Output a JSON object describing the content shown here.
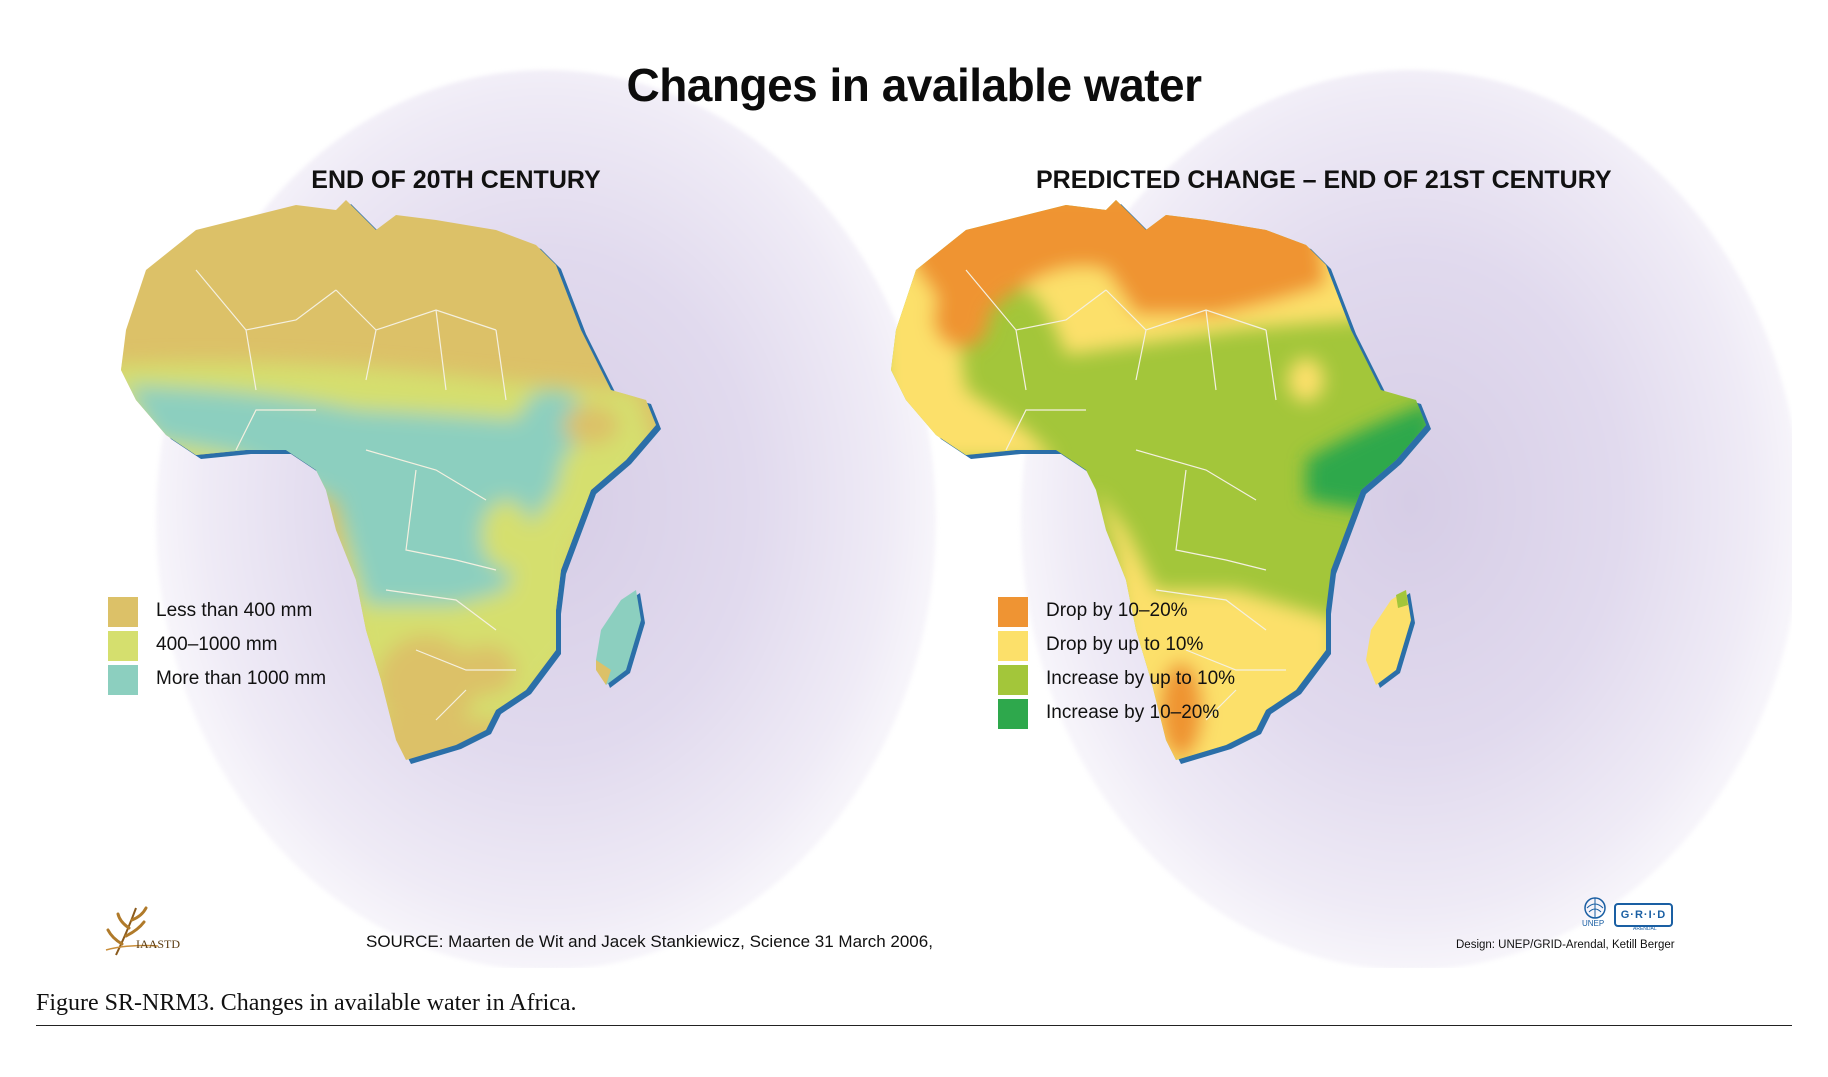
{
  "figure": {
    "title": "Changes in available water",
    "caption": "Figure SR-NRM3. Changes in available water in Africa.",
    "source": "SOURCE: Maarten de Wit and Jacek Stankiewicz, Science 31 March 2006,",
    "design_credit": "Design: UNEP/GRID-Arendal, Ketill Berger"
  },
  "logos": {
    "iaasdt": "IAASTD",
    "unep": "UNEP",
    "grid": "G·R·I·D",
    "grid_sub": "ARENDAL"
  },
  "maps": [
    {
      "title": "END OF 20TH CENTURY",
      "legend": [
        {
          "label": "Less than 400 mm",
          "color": "#dcc168"
        },
        {
          "label": "400–1000 mm",
          "color": "#d5df6e"
        },
        {
          "label": "More than 1000 mm",
          "color": "#8ccfbf"
        }
      ]
    },
    {
      "title": "PREDICTED CHANGE – END OF 21ST CENTURY",
      "legend": [
        {
          "label": "Drop by 10–20%",
          "color": "#ef9433"
        },
        {
          "label": "Drop by up to 10%",
          "color": "#fce06a"
        },
        {
          "label": "Increase by up to 10%",
          "color": "#a3c63a"
        },
        {
          "label": "Increase by 10–20%",
          "color": "#2ea84c"
        }
      ]
    }
  ],
  "colors": {
    "coast_shadow": "#2b6fa8",
    "border": "#f4f0e0"
  }
}
